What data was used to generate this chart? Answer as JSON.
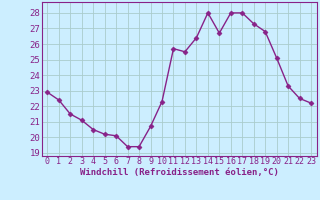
{
  "x": [
    0,
    1,
    2,
    3,
    4,
    5,
    6,
    7,
    8,
    9,
    10,
    11,
    12,
    13,
    14,
    15,
    16,
    17,
    18,
    19,
    20,
    21,
    22,
    23
  ],
  "y": [
    22.9,
    22.4,
    21.5,
    21.1,
    20.5,
    20.2,
    20.1,
    19.4,
    19.4,
    20.7,
    22.3,
    25.7,
    25.5,
    26.4,
    28.0,
    26.7,
    28.0,
    28.0,
    27.3,
    26.8,
    25.1,
    23.3,
    22.5,
    22.2
  ],
  "line_color": "#882288",
  "marker": "D",
  "markersize": 2.5,
  "linewidth": 1.0,
  "bg_color": "#cceeff",
  "grid_color": "#aacccc",
  "tick_color": "#882288",
  "label_color": "#882288",
  "xlabel": "Windchill (Refroidissement éolien,°C)",
  "xlim": [
    -0.5,
    23.5
  ],
  "ylim": [
    18.8,
    28.7
  ],
  "yticks": [
    19,
    20,
    21,
    22,
    23,
    24,
    25,
    26,
    27,
    28
  ],
  "xticks": [
    0,
    1,
    2,
    3,
    4,
    5,
    6,
    7,
    8,
    9,
    10,
    11,
    12,
    13,
    14,
    15,
    16,
    17,
    18,
    19,
    20,
    21,
    22,
    23
  ],
  "xlabel_fontsize": 6.5,
  "tick_fontsize": 6.0,
  "ytick_fontsize": 6.5
}
